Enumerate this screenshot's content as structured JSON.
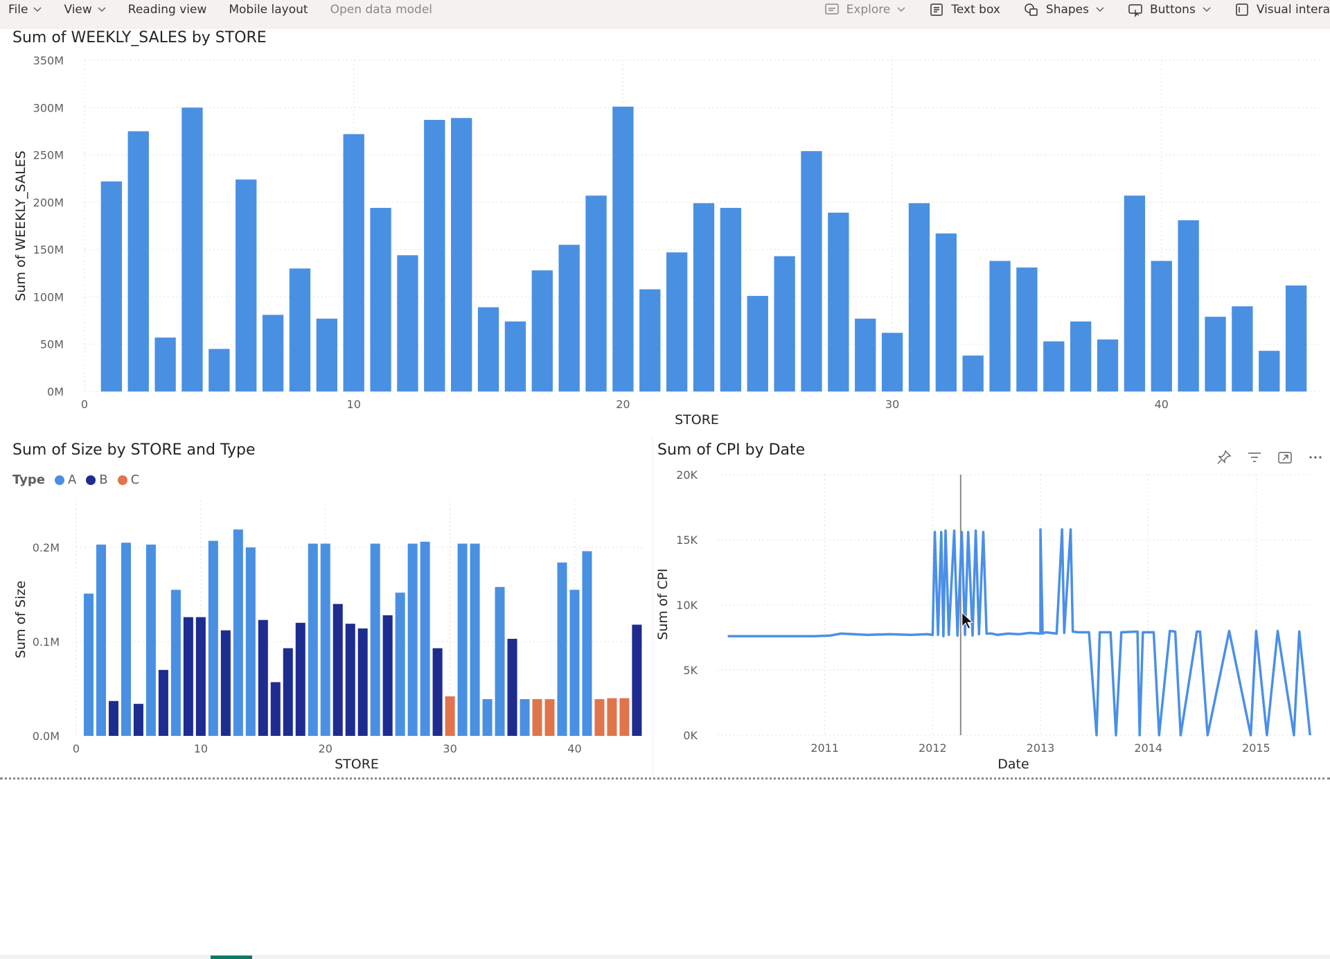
{
  "menu": {
    "file": "File",
    "view": "View",
    "reading_view": "Reading view",
    "mobile_layout": "Mobile layout",
    "open_data_model": "Open data model"
  },
  "toolbar": {
    "explore": "Explore",
    "text_box": "Text box",
    "shapes": "Shapes",
    "buttons": "Buttons",
    "visual_interactions": "Visual intera"
  },
  "colors": {
    "type_a": "#4a90e2",
    "type_b": "#1e2b8f",
    "type_c": "#e0744c",
    "line": "#4a8fe8"
  },
  "visuals": {
    "sales": {
      "title": "Sum of WEEKLY_SALES by STORE",
      "xlabel": "STORE",
      "ylabel": "Sum of WEEKLY_SALES"
    },
    "size": {
      "title": "Sum of Size by STORE and Type",
      "xlabel": "STORE",
      "ylabel": "Sum of Size",
      "legend_title": "Type",
      "legend": [
        "A",
        "B",
        "C"
      ]
    },
    "cpi": {
      "title": "Sum of CPI by Date",
      "xlabel": "Date",
      "ylabel": "Sum of CPI",
      "header_icons": [
        "pin-icon",
        "filter-icon",
        "focus-mode-icon",
        "more-options-icon"
      ]
    }
  },
  "chart_data": [
    {
      "type": "bar",
      "title": "Sum of WEEKLY_SALES by STORE",
      "xlabel": "STORE",
      "ylabel": "Sum of WEEKLY_SALES",
      "x": [
        1,
        2,
        3,
        4,
        5,
        6,
        7,
        8,
        9,
        10,
        11,
        12,
        13,
        14,
        15,
        16,
        17,
        18,
        19,
        20,
        21,
        22,
        23,
        24,
        25,
        26,
        27,
        28,
        29,
        30,
        31,
        32,
        33,
        34,
        35,
        36,
        37,
        38,
        39,
        40,
        41,
        42,
        43,
        44,
        45
      ],
      "values": [
        222,
        275,
        57,
        300,
        45,
        224,
        81,
        130,
        77,
        272,
        194,
        144,
        287,
        289,
        89,
        74,
        128,
        155,
        207,
        301,
        108,
        147,
        199,
        194,
        101,
        143,
        254,
        189,
        77,
        62,
        199,
        167,
        38,
        138,
        131,
        53,
        74,
        55,
        207,
        138,
        181,
        79,
        90,
        43,
        112
      ],
      "unit": "M",
      "xticks": [
        0,
        10,
        20,
        30,
        40
      ],
      "yticks": [
        "0M",
        "50M",
        "100M",
        "150M",
        "200M",
        "250M",
        "300M",
        "350M"
      ],
      "ylim": [
        0,
        350
      ],
      "grid": true,
      "color": "#4a90e2"
    },
    {
      "type": "bar",
      "title": "Sum of Size by STORE and Type",
      "xlabel": "STORE",
      "ylabel": "Sum of Size",
      "x": [
        1,
        2,
        3,
        4,
        5,
        6,
        7,
        8,
        9,
        10,
        11,
        12,
        13,
        14,
        15,
        16,
        17,
        18,
        19,
        20,
        21,
        22,
        23,
        24,
        25,
        26,
        27,
        28,
        29,
        30,
        31,
        32,
        33,
        34,
        35,
        36,
        37,
        38,
        39,
        40,
        41,
        42,
        43,
        44,
        45
      ],
      "values": [
        0.151,
        0.203,
        0.037,
        0.205,
        0.034,
        0.203,
        0.07,
        0.155,
        0.126,
        0.126,
        0.207,
        0.112,
        0.219,
        0.2,
        0.123,
        0.057,
        0.093,
        0.12,
        0.204,
        0.204,
        0.14,
        0.119,
        0.114,
        0.204,
        0.128,
        0.152,
        0.204,
        0.206,
        0.093,
        0.042,
        0.204,
        0.204,
        0.039,
        0.158,
        0.103,
        0.039,
        0.039,
        0.039,
        0.184,
        0.155,
        0.196,
        0.039,
        0.04,
        0.04,
        0.118
      ],
      "types": [
        "A",
        "A",
        "B",
        "A",
        "B",
        "A",
        "B",
        "A",
        "B",
        "B",
        "A",
        "B",
        "A",
        "A",
        "B",
        "B",
        "B",
        "B",
        "A",
        "A",
        "B",
        "B",
        "B",
        "A",
        "B",
        "A",
        "A",
        "A",
        "B",
        "C",
        "A",
        "A",
        "A",
        "A",
        "B",
        "A",
        "C",
        "C",
        "A",
        "A",
        "A",
        "C",
        "C",
        "C",
        "B"
      ],
      "series": [
        {
          "name": "A"
        },
        {
          "name": "B"
        },
        {
          "name": "C"
        }
      ],
      "unit": "M",
      "xticks": [
        0,
        10,
        20,
        30,
        40
      ],
      "yticks": [
        "0.0M",
        "0.1M",
        "0.2M"
      ],
      "ylim": [
        0,
        0.25
      ],
      "legend": "top-left",
      "grid": true
    },
    {
      "type": "line",
      "title": "Sum of CPI by Date",
      "xlabel": "Date",
      "ylabel": "Sum of CPI",
      "x": [
        2010.1,
        2010.5,
        2010.9,
        2011.05,
        2011.15,
        2011.4,
        2011.6,
        2011.8,
        2011.95,
        2012.0,
        2012.02,
        2012.05,
        2012.08,
        2012.1,
        2012.12,
        2012.15,
        2012.2,
        2012.23,
        2012.27,
        2012.3,
        2012.33,
        2012.37,
        2012.4,
        2012.43,
        2012.47,
        2012.5,
        2012.55,
        2012.6,
        2012.7,
        2012.8,
        2012.9,
        2013.0,
        2013.0,
        2013.02,
        2013.05,
        2013.15,
        2013.2,
        2013.22,
        2013.28,
        2013.3,
        2013.35,
        2013.45,
        2013.52,
        2013.55,
        2013.65,
        2013.7,
        2013.75,
        2013.9,
        2013.92,
        2013.95,
        2014.05,
        2014.1,
        2014.2,
        2014.25,
        2014.3,
        2014.45,
        2014.48,
        2014.55,
        2014.75,
        2014.95,
        2015.0,
        2015.1,
        2015.2,
        2015.35,
        2015.4,
        2015.5
      ],
      "values": [
        7600,
        7600,
        7600,
        7650,
        7800,
        7700,
        7750,
        7700,
        7750,
        7700,
        15600,
        7700,
        15600,
        7600,
        15700,
        7700,
        15700,
        7650,
        15600,
        7700,
        15600,
        7650,
        15700,
        7750,
        15600,
        7800,
        7800,
        7700,
        7800,
        7750,
        7850,
        7800,
        15800,
        7800,
        7900,
        7800,
        15800,
        7850,
        15800,
        7950,
        7900,
        7900,
        0,
        7900,
        7900,
        0,
        7900,
        7950,
        0,
        7900,
        7900,
        0,
        8000,
        7950,
        0,
        7950,
        7950,
        0,
        8000,
        0,
        8000,
        0,
        8000,
        0,
        7950,
        0
      ],
      "xticks": [
        "2011",
        "2012",
        "2013",
        "2014",
        "2015"
      ],
      "yticks": [
        "0K",
        "5K",
        "10K",
        "15K",
        "20K"
      ],
      "ylim": [
        0,
        20000
      ],
      "xlim": [
        2010.0,
        2015.55
      ],
      "grid": true,
      "color": "#4a8fe8"
    }
  ]
}
